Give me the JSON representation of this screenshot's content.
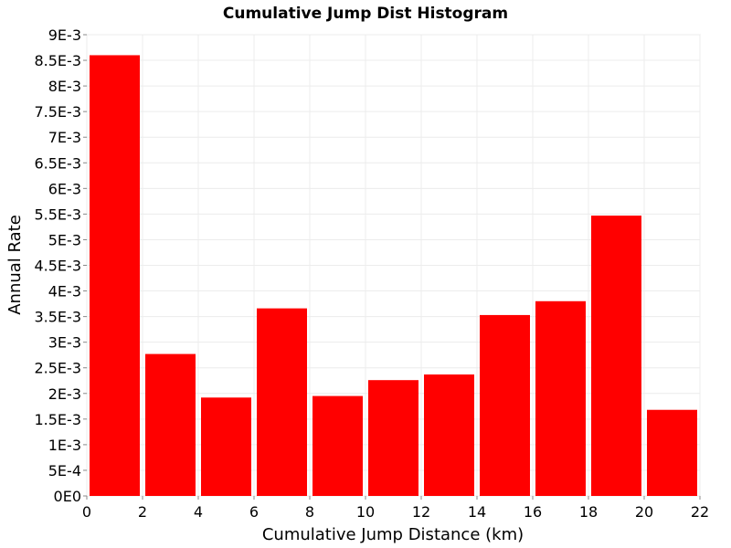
{
  "chart_data": {
    "type": "bar",
    "title": "Cumulative Jump Dist Histogram",
    "xlabel": "Cumulative Jump Distance (km)",
    "ylabel": "Annual Rate",
    "xlim": [
      0,
      22
    ],
    "ylim": [
      0,
      0.009
    ],
    "x_ticks": [
      0,
      2,
      4,
      6,
      8,
      10,
      12,
      14,
      16,
      18,
      20,
      22
    ],
    "x_tick_labels": [
      "0",
      "2",
      "4",
      "6",
      "8",
      "10",
      "12",
      "14",
      "16",
      "18",
      "20",
      "22"
    ],
    "y_ticks": [
      0,
      0.0005,
      0.001,
      0.0015,
      0.002,
      0.0025,
      0.003,
      0.0035,
      0.004,
      0.0045,
      0.005,
      0.0055,
      0.006,
      0.0065,
      0.007,
      0.0075,
      0.008,
      0.0085,
      0.009
    ],
    "y_tick_labels": [
      "0E0",
      "5E-4",
      "1E-3",
      "1.5E-3",
      "2E-3",
      "2.5E-3",
      "3E-3",
      "3.5E-3",
      "4E-3",
      "4.5E-3",
      "5E-3",
      "5.5E-3",
      "6E-3",
      "6.5E-3",
      "7E-3",
      "7.5E-3",
      "8E-3",
      "8.5E-3",
      "9E-3"
    ],
    "bins": [
      {
        "x_start": 0,
        "x_end": 2,
        "value": 0.0086
      },
      {
        "x_start": 2,
        "x_end": 4,
        "value": 0.00277
      },
      {
        "x_start": 4,
        "x_end": 6,
        "value": 0.00192
      },
      {
        "x_start": 6,
        "x_end": 8,
        "value": 0.00366
      },
      {
        "x_start": 8,
        "x_end": 10,
        "value": 0.00195
      },
      {
        "x_start": 10,
        "x_end": 12,
        "value": 0.00226
      },
      {
        "x_start": 12,
        "x_end": 14,
        "value": 0.00237
      },
      {
        "x_start": 14,
        "x_end": 16,
        "value": 0.00353
      },
      {
        "x_start": 16,
        "x_end": 18,
        "value": 0.0038
      },
      {
        "x_start": 18,
        "x_end": 20,
        "value": 0.00547
      },
      {
        "x_start": 20,
        "x_end": 22,
        "value": 0.00168
      }
    ],
    "bar_color": "#ff0000",
    "grid": true,
    "legend": "none"
  }
}
